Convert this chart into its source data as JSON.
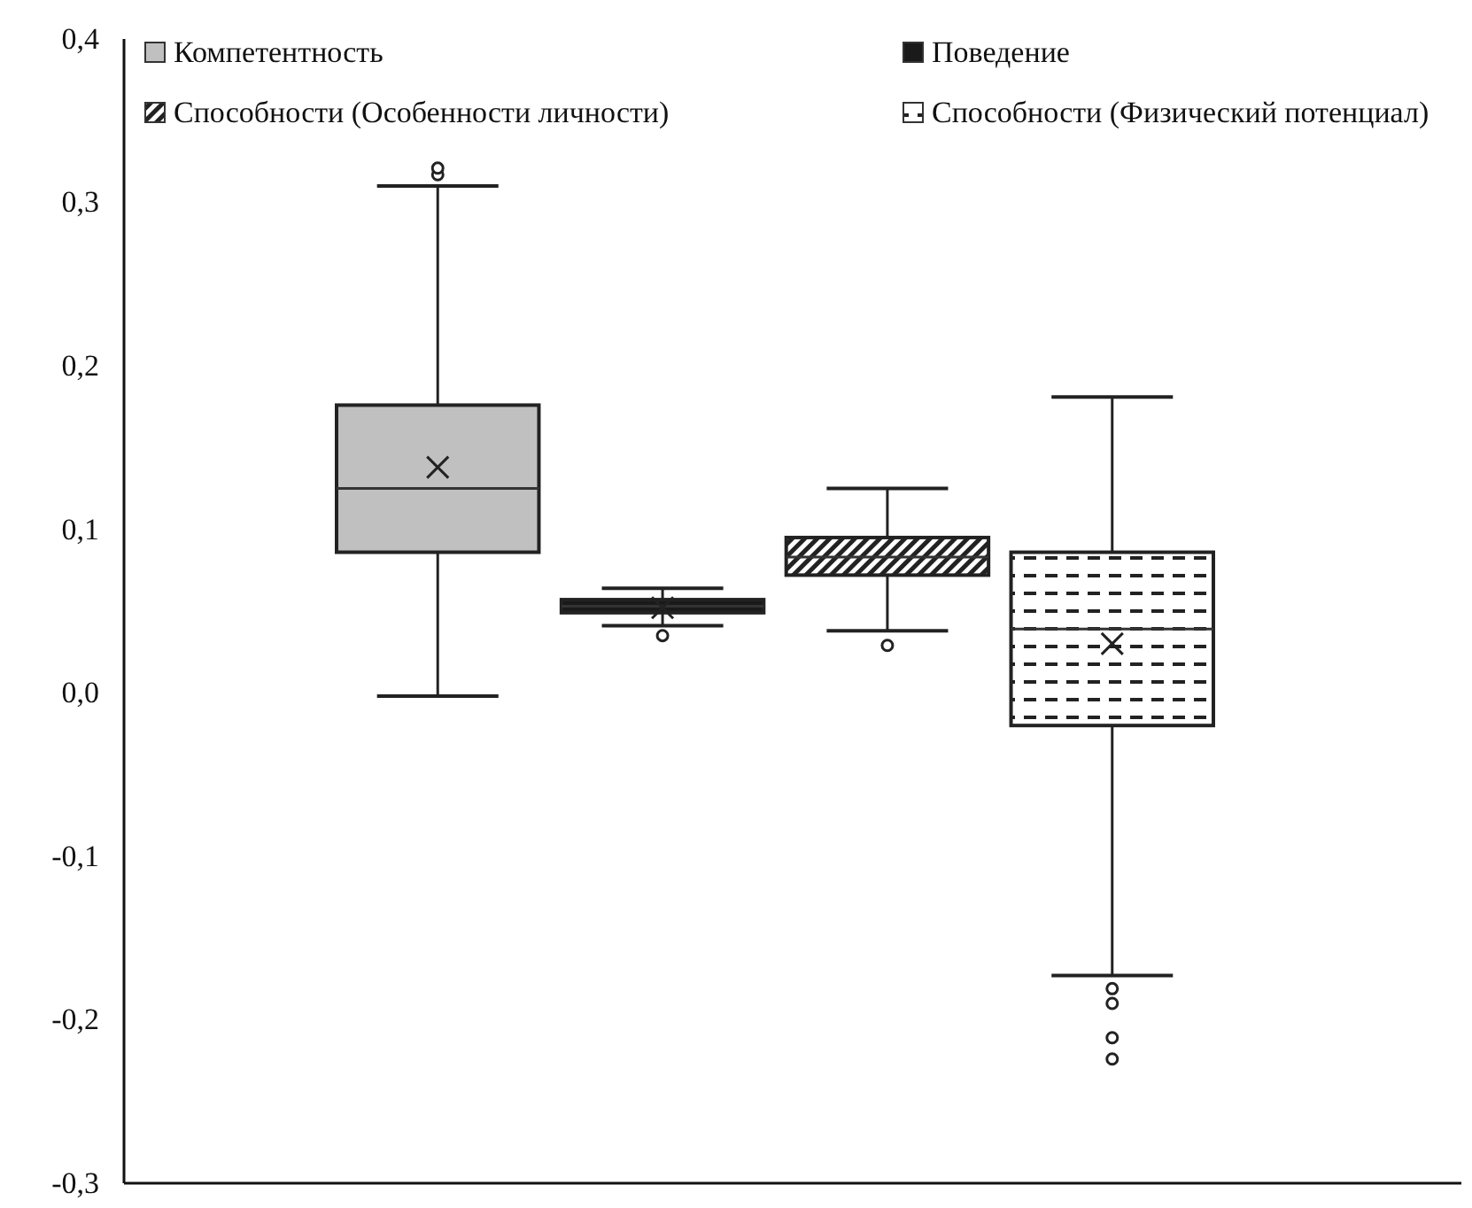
{
  "chart_data": {
    "type": "box",
    "categories": [
      null
    ],
    "ylim": [
      -0.3,
      0.4
    ],
    "yticks": [
      {
        "value": -0.3,
        "label": "-0,3"
      },
      {
        "value": -0.2,
        "label": "-0,2"
      },
      {
        "value": -0.1,
        "label": "-0,1"
      },
      {
        "value": 0,
        "label": "0,0"
      },
      {
        "value": 0.1,
        "label": "0,1"
      },
      {
        "value": 0.2,
        "label": "0,2"
      },
      {
        "value": 0.3,
        "label": "0,3"
      },
      {
        "value": 0.4,
        "label": "0,4"
      }
    ],
    "grid": false,
    "legend": "top",
    "marker": "cross",
    "series": [
      {
        "name": "Компетентность",
        "color": "#c0c0c0",
        "boxes": [
          {
            "low": -0.002,
            "q1": 0.086,
            "median": 0.125,
            "q3": 0.176,
            "high": 0.31,
            "mean": 0.138,
            "outliers": [
              0.317,
              0.321
            ]
          }
        ]
      },
      {
        "name": "Поведение",
        "color": "#1a1a1a",
        "boxes": [
          {
            "low": 0.041,
            "q1": 0.049,
            "median": 0.053,
            "q3": 0.057,
            "high": 0.064,
            "mean": 0.052,
            "outliers": [
              0.035
            ]
          }
        ]
      },
      {
        "name": "Способности (Особенности личности)",
        "color": "#222222",
        "boxes": [
          {
            "low": 0.038,
            "q1": 0.072,
            "median": 0.083,
            "q3": 0.095,
            "high": 0.125,
            "outliers": [
              0.029
            ]
          }
        ]
      },
      {
        "name": "Способности (Физический потенциал)",
        "color": "#222222",
        "boxes": [
          {
            "low": -0.173,
            "q1": -0.02,
            "median": 0.039,
            "q3": 0.086,
            "high": 0.181,
            "mean": 0.03,
            "outliers": [
              -0.181,
              -0.19,
              -0.211,
              -0.224
            ]
          }
        ]
      }
    ]
  }
}
